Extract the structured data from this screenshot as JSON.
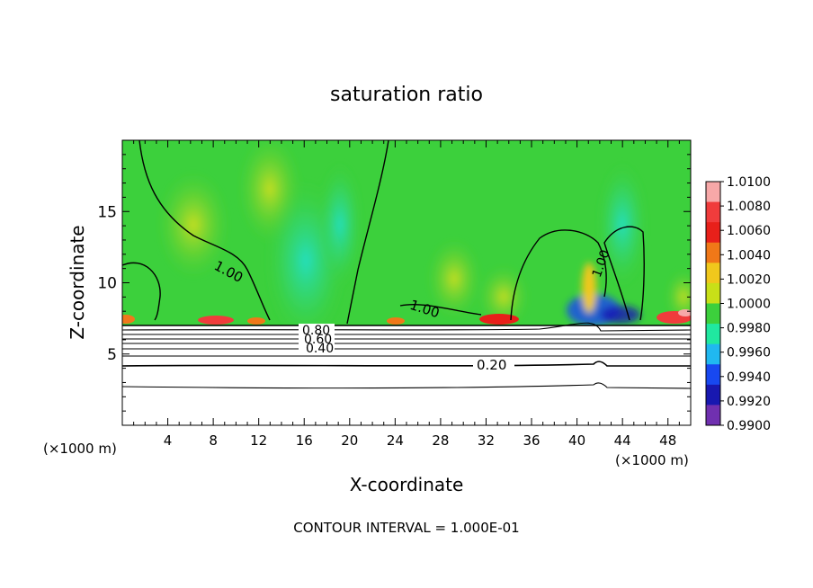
{
  "chart_data": {
    "type": "heatmap",
    "title": "saturation ratio",
    "xlabel": "X-coordinate",
    "ylabel": "Z-coordinate",
    "x_unit_left": "(×1000 m)",
    "x_unit_right": "(×1000 m)",
    "footer": "CONTOUR INTERVAL = 1.000E-01",
    "xlim": [
      0,
      50
    ],
    "ylim": [
      0,
      20
    ],
    "x_ticks": [
      "4",
      "8",
      "12",
      "16",
      "20",
      "24",
      "28",
      "32",
      "36",
      "40",
      "44",
      "48"
    ],
    "y_ticks": [
      "5",
      "10",
      "15"
    ],
    "colorbar": {
      "min": 0.99,
      "max": 1.01,
      "labels": [
        "1.0100",
        "1.0080",
        "1.0060",
        "1.0040",
        "1.0020",
        "1.0000",
        "0.9980",
        "0.9960",
        "0.9940",
        "0.9920",
        "0.9900"
      ],
      "colors": [
        "#f7a8a8",
        "#f03c3c",
        "#e8201a",
        "#f07818",
        "#f0c81c",
        "#c8e018",
        "#3cd03c",
        "#20e8a0",
        "#20b8f0",
        "#1848f0",
        "#1818b0",
        "#7030b0"
      ]
    },
    "contour_labels": [
      "1.00",
      "1.00",
      "1.00",
      "0.80",
      "0.60",
      "0.40",
      "0.20"
    ],
    "grid": false
  }
}
